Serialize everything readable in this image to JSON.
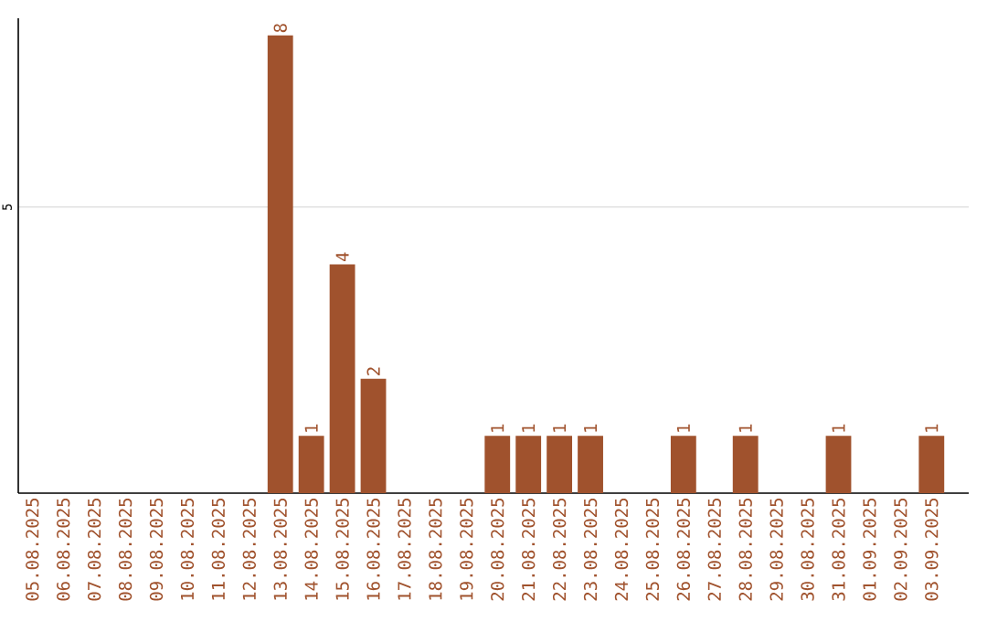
{
  "chart_data": {
    "type": "bar",
    "categories": [
      "05.08.2025",
      "06.08.2025",
      "07.08.2025",
      "08.08.2025",
      "09.08.2025",
      "10.08.2025",
      "11.08.2025",
      "12.08.2025",
      "13.08.2025",
      "14.08.2025",
      "15.08.2025",
      "16.08.2025",
      "17.08.2025",
      "18.08.2025",
      "19.08.2025",
      "20.08.2025",
      "21.08.2025",
      "22.08.2025",
      "23.08.2025",
      "24.08.2025",
      "25.08.2025",
      "26.08.2025",
      "27.08.2025",
      "28.08.2025",
      "29.08.2025",
      "30.08.2025",
      "31.08.2025",
      "01.09.2025",
      "02.09.2025",
      "03.09.2025"
    ],
    "values": [
      0,
      0,
      0,
      0,
      0,
      0,
      0,
      0,
      8,
      1,
      4,
      2,
      0,
      0,
      0,
      1,
      1,
      1,
      1,
      0,
      0,
      1,
      0,
      1,
      0,
      0,
      1,
      0,
      0,
      1
    ],
    "value_labels": [
      null,
      null,
      null,
      null,
      null,
      null,
      null,
      null,
      "8",
      "1",
      "4",
      "2",
      null,
      null,
      null,
      "1",
      "1",
      "1",
      "1",
      null,
      null,
      "1",
      null,
      "1",
      null,
      null,
      "1",
      null,
      null,
      "1"
    ],
    "color": "#a0522d",
    "ylim": [
      0,
      8.3
    ],
    "yticks": [
      5
    ],
    "grid": "y"
  }
}
